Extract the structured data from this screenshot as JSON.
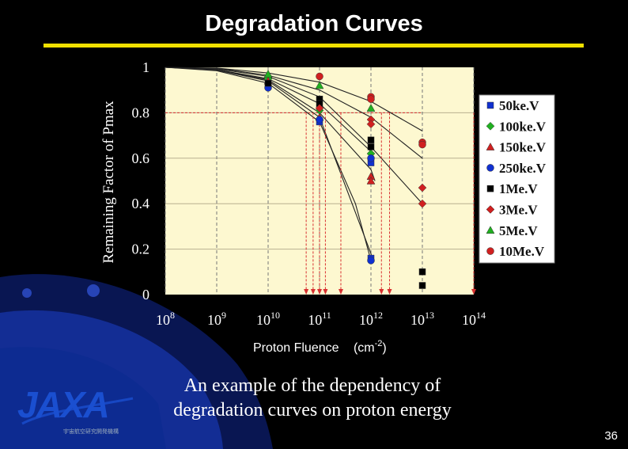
{
  "slide": {
    "title": "Degradation Curves",
    "caption_line1": "An example of the dependency of",
    "caption_line2": "degradation curves on proton energy",
    "page_number": "36",
    "logo_text": "JAXA",
    "logo_subtext": "宇宙航空研究開発機構"
  },
  "colors": {
    "background": "#000000",
    "title_rule": "#f0e000",
    "plot_background": "#fdf8d0",
    "guide_line": "#d83030"
  },
  "chart_data": {
    "type": "scatter",
    "title": "",
    "xlabel": "Proton Fluence",
    "xlabel_unit_base": "(cm",
    "xlabel_unit_exp": "-2",
    "xlabel_unit_close": ")",
    "ylabel": "Remaining Factor of Pmax",
    "x_scale": "log",
    "xlim": [
      100000000.0,
      100000000000000.0
    ],
    "ylim": [
      0,
      1
    ],
    "x_ticks": [
      {
        "base": "10",
        "exp": "8",
        "value": 100000000.0
      },
      {
        "base": "10",
        "exp": "9",
        "value": 1000000000.0
      },
      {
        "base": "10",
        "exp": "10",
        "value": 10000000000.0
      },
      {
        "base": "10",
        "exp": "11",
        "value": 100000000000.0
      },
      {
        "base": "10",
        "exp": "12",
        "value": 1000000000000.0
      },
      {
        "base": "10",
        "exp": "13",
        "value": 10000000000000.0
      },
      {
        "base": "10",
        "exp": "14",
        "value": 100000000000000.0
      }
    ],
    "y_ticks": [
      {
        "label": "0",
        "value": 0
      },
      {
        "label": "0.2",
        "value": 0.2
      },
      {
        "label": "0.4",
        "value": 0.4
      },
      {
        "label": "0.6",
        "value": 0.6
      },
      {
        "label": "0.8",
        "value": 0.8
      },
      {
        "label": "1",
        "value": 1
      }
    ],
    "grid": true,
    "legend_position": "right",
    "series": [
      {
        "name": "50ke.V",
        "marker": "square",
        "color": "#1030d0",
        "points": [
          [
            10000000000.0,
            0.92
          ],
          [
            100000000000.0,
            0.76
          ],
          [
            1000000000000.0,
            0.58
          ],
          [
            1000000000000.0,
            0.16
          ]
        ]
      },
      {
        "name": "100ke.V",
        "marker": "diamond",
        "color": "#20b020",
        "points": [
          [
            10000000000.0,
            0.95
          ],
          [
            100000000000.0,
            0.81
          ],
          [
            1000000000000.0,
            0.62
          ]
        ]
      },
      {
        "name": "150ke.V",
        "marker": "triangle",
        "color": "#d02020",
        "points": [
          [
            10000000000.0,
            0.94
          ],
          [
            100000000000.0,
            0.78
          ],
          [
            1000000000000.0,
            0.52
          ],
          [
            1000000000000.0,
            0.5
          ]
        ]
      },
      {
        "name": "250ke.V",
        "marker": "circle",
        "color": "#1030d0",
        "points": [
          [
            10000000000.0,
            0.91
          ],
          [
            100000000000.0,
            0.77
          ],
          [
            1000000000000.0,
            0.6
          ],
          [
            1000000000000.0,
            0.15
          ]
        ]
      },
      {
        "name": "1Me.V",
        "marker": "square",
        "color": "#000000",
        "points": [
          [
            10000000000.0,
            0.93
          ],
          [
            100000000000.0,
            0.86
          ],
          [
            100000000000.0,
            0.84
          ],
          [
            1000000000000.0,
            0.68
          ],
          [
            1000000000000.0,
            0.65
          ],
          [
            10000000000000.0,
            0.1
          ],
          [
            10000000000000.0,
            0.04
          ]
        ]
      },
      {
        "name": "3Me.V",
        "marker": "diamond",
        "color": "#d02020",
        "points": [
          [
            100000000000.0,
            0.82
          ],
          [
            1000000000000.0,
            0.77
          ],
          [
            1000000000000.0,
            0.75
          ],
          [
            10000000000000.0,
            0.47
          ],
          [
            10000000000000.0,
            0.4
          ]
        ]
      },
      {
        "name": "5Me.V",
        "marker": "triangle",
        "color": "#20b020",
        "points": [
          [
            10000000000.0,
            0.97
          ],
          [
            100000000000.0,
            0.92
          ],
          [
            1000000000000.0,
            0.82
          ]
        ]
      },
      {
        "name": "10Me.V",
        "marker": "circle",
        "color": "#d02020",
        "points": [
          [
            100000000000.0,
            0.96
          ],
          [
            1000000000000.0,
            0.87
          ],
          [
            1000000000000.0,
            0.86
          ],
          [
            10000000000000.0,
            0.67
          ],
          [
            10000000000000.0,
            0.66
          ]
        ]
      }
    ],
    "curves": [
      {
        "points": [
          [
            100000000.0,
            1.0
          ],
          [
            1000000000.0,
            0.997
          ],
          [
            10000000000.0,
            0.975
          ],
          [
            100000000000.0,
            0.935
          ],
          [
            1000000000000.0,
            0.85
          ],
          [
            10000000000000.0,
            0.72
          ]
        ]
      },
      {
        "points": [
          [
            100000000.0,
            1.0
          ],
          [
            1000000000.0,
            0.995
          ],
          [
            10000000000.0,
            0.965
          ],
          [
            100000000000.0,
            0.9
          ],
          [
            1000000000000.0,
            0.78
          ],
          [
            10000000000000.0,
            0.6
          ]
        ]
      },
      {
        "points": [
          [
            100000000.0,
            1.0
          ],
          [
            1000000000.0,
            0.993
          ],
          [
            10000000000.0,
            0.96
          ],
          [
            100000000000.0,
            0.87
          ],
          [
            1000000000000.0,
            0.65
          ],
          [
            10000000000000.0,
            0.4
          ]
        ]
      },
      {
        "points": [
          [
            100000000.0,
            1.0
          ],
          [
            1000000000.0,
            0.99
          ],
          [
            10000000000.0,
            0.95
          ],
          [
            100000000000.0,
            0.84
          ],
          [
            1000000000000.0,
            0.63
          ],
          [
            1000000000000.0,
            0.62
          ]
        ]
      },
      {
        "points": [
          [
            100000000.0,
            1.0
          ],
          [
            1000000000.0,
            0.99
          ],
          [
            10000000000.0,
            0.945
          ],
          [
            100000000000.0,
            0.8
          ],
          [
            1000000000000.0,
            0.55
          ],
          [
            1200000000000.0,
            0.5
          ]
        ]
      },
      {
        "points": [
          [
            100000000.0,
            1.0
          ],
          [
            1000000000.0,
            0.988
          ],
          [
            10000000000.0,
            0.94
          ],
          [
            100000000000.0,
            0.78
          ],
          [
            1000000000000.0,
            0.18
          ],
          [
            1100000000000.0,
            0.14
          ]
        ]
      },
      {
        "points": [
          [
            100000000.0,
            1.0
          ],
          [
            1000000000.0,
            0.985
          ],
          [
            10000000000.0,
            0.93
          ],
          [
            100000000000.0,
            0.76
          ],
          [
            500000000000.0,
            0.4
          ],
          [
            1000000000000.0,
            0.15
          ]
        ]
      }
    ],
    "threshold_y": 0.8,
    "threshold_arrows_x": [
      55000000000.0,
      75000000000.0,
      100000000000.0,
      130000000000.0,
      260000000000.0,
      1600000000000.0,
      2300000000000.0,
      100000000000000.0
    ]
  }
}
